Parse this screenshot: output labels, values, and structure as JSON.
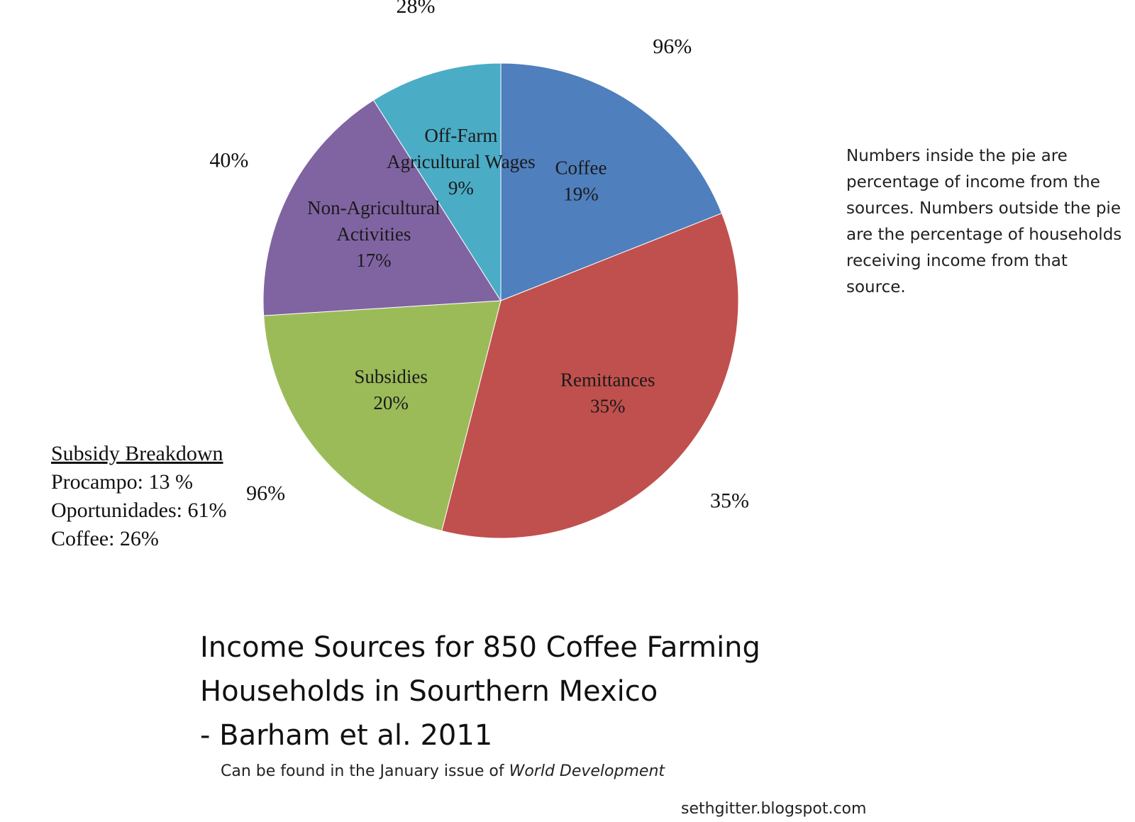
{
  "chart_data": {
    "type": "pie",
    "title": "Income Sources for 850 Coffee Farming Households in Sourthern Mexico - Barham et al. 2011",
    "slices": [
      {
        "label_lines": [
          "Coffee"
        ],
        "value": 19,
        "value_label": "19%",
        "households_pct": "96%",
        "color": "#4f7fbd"
      },
      {
        "label_lines": [
          "Remittances"
        ],
        "value": 35,
        "value_label": "35%",
        "households_pct": "35%",
        "color": "#c0504d"
      },
      {
        "label_lines": [
          "Subsidies"
        ],
        "value": 20,
        "value_label": "20%",
        "households_pct": "96%",
        "color": "#9bbb59"
      },
      {
        "label_lines": [
          "Non-Agricultural",
          "Activities"
        ],
        "value": 17,
        "value_label": "17%",
        "households_pct": "40%",
        "color": "#8064a2"
      },
      {
        "label_lines": [
          "Off-Farm",
          "Agricultural Wages"
        ],
        "value": 9,
        "value_label": "9%",
        "households_pct": "28%",
        "color": "#4bacc6"
      }
    ]
  },
  "note": "Numbers inside the pie are percentage of income from the sources. Numbers outside the pie are the percentage of households receiving income from that source.",
  "subsidy_breakdown": {
    "title": "Subsidy Breakdown",
    "items": [
      "Procampo:  13 %",
      "Oportunidades:  61%",
      "Coffee: 26%"
    ]
  },
  "title_lines": [
    "Income Sources for 850 Coffee Farming",
    "Households in Sourthern Mexico",
    "- Barham et al. 2011"
  ],
  "source": {
    "prefix": "Can be found in the January issue of ",
    "journal": "World Development"
  },
  "credit": "sethgitter.blogspot.com"
}
